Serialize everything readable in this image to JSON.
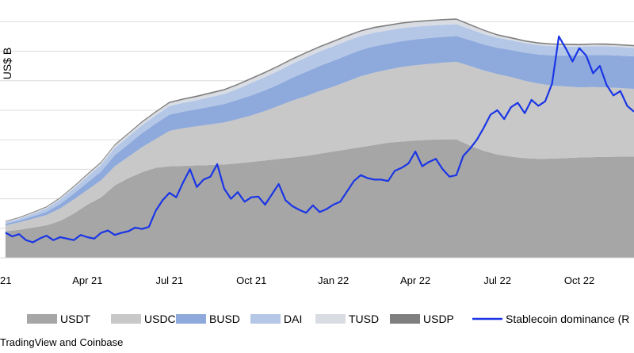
{
  "chart_data": {
    "type": "area",
    "ylabel": "US$ B",
    "x_tick_labels": [
      "21",
      "Apr 21",
      "Jul 21",
      "Oct 21",
      "Jan 22",
      "Apr 22",
      "Jul 22",
      "Oct 22"
    ],
    "x_tick_positions": [
      0,
      3,
      6,
      9,
      12,
      15,
      18,
      21
    ],
    "xlim": [
      -0.2,
      23
    ],
    "ylim": [
      0,
      165
    ],
    "grid": "horizontal",
    "legend_position": "bottom",
    "x": [
      0,
      0.5,
      1,
      1.5,
      2,
      2.5,
      3,
      3.5,
      4,
      4.5,
      5,
      5.5,
      6,
      6.5,
      7,
      7.5,
      8,
      8.5,
      9,
      9.5,
      10,
      10.5,
      11,
      11.5,
      12,
      12.5,
      13,
      13.5,
      14,
      14.5,
      15,
      15.5,
      16,
      16.5,
      17,
      17.5,
      18,
      18.5,
      19,
      19.5,
      20,
      20.5,
      21,
      21.5,
      22,
      22.5,
      23
    ],
    "series": [
      {
        "name": "USDT",
        "color": "#a6a6a6",
        "values": [
          18,
          19,
          20.5,
          22,
          25,
          30,
          36,
          41,
          49,
          54,
          58,
          61,
          62,
          62.3,
          62.6,
          62.9,
          63.2,
          64,
          65,
          66,
          67,
          68,
          69,
          70.5,
          72,
          73.5,
          75,
          76.5,
          78,
          78.8,
          79.5,
          79.9,
          80.2,
          80.3,
          76,
          72.5,
          70,
          68.5,
          67.5,
          67,
          67.2,
          67.6,
          68,
          68.2,
          68.4,
          68.5,
          68.5
        ]
      },
      {
        "name": "USDC",
        "color": "#c8c8c8",
        "values": [
          4,
          5,
          6,
          7,
          8.5,
          9.5,
          10,
          11.5,
          13,
          14.5,
          17,
          19.5,
          24,
          25.5,
          26.5,
          27.5,
          28.5,
          30,
          31.5,
          33.5,
          36,
          38.5,
          40.5,
          42.5,
          44,
          46,
          48,
          49,
          49.5,
          50.5,
          51,
          51.5,
          52,
          52.5,
          54,
          54.5,
          54.5,
          54,
          52.5,
          51,
          49.5,
          48.5,
          47.5,
          47.5,
          47,
          46.5,
          46
        ]
      },
      {
        "name": "BUSD",
        "color": "#8ea9db",
        "values": [
          1,
          1.2,
          1.5,
          2,
          3,
          4,
          5,
          6,
          7.5,
          8.5,
          9.5,
          10.5,
          11,
          11.2,
          11.5,
          12,
          12.5,
          13,
          13.5,
          14,
          14.5,
          15.5,
          16.5,
          17,
          17.5,
          17.7,
          17.8,
          17.8,
          17.6,
          17.5,
          17.5,
          17.5,
          17.5,
          17.5,
          17.5,
          17.6,
          17.8,
          18.3,
          19,
          19.8,
          20.5,
          21,
          21.5,
          21.7,
          22,
          22,
          22
        ]
      },
      {
        "name": "DAI",
        "color": "#b4c7e7",
        "values": [
          1,
          1.3,
          1.8,
          2.5,
          3,
          3.5,
          4,
          4.5,
          5,
          5.2,
          5.4,
          5.6,
          5.8,
          6,
          6.2,
          6.5,
          6.8,
          7.5,
          8.5,
          9,
          9.3,
          9.5,
          9.7,
          9.8,
          9.9,
          9.8,
          9.6,
          9.3,
          9,
          8.8,
          8.6,
          8.4,
          8.2,
          8,
          7.5,
          7,
          6.8,
          6.6,
          6.5,
          6.3,
          6.2,
          6.1,
          6,
          6,
          5.9,
          5.8,
          5.8
        ]
      },
      {
        "name": "TUSD",
        "color": "#d9dde3",
        "values": [
          0.5,
          0.5,
          0.6,
          0.7,
          0.8,
          1,
          1.2,
          1.4,
          1.6,
          1.7,
          1.8,
          1.9,
          2,
          2.1,
          2.2,
          2.3,
          2.4,
          2.5,
          2.6,
          2.7,
          2.8,
          2.8,
          2.8,
          2.8,
          2.8,
          2.9,
          2.9,
          3,
          3,
          3,
          3,
          3,
          3,
          3,
          2.5,
          2.2,
          1.5,
          1.2,
          1,
          1,
          1,
          1,
          1,
          1,
          1,
          1,
          1
        ]
      },
      {
        "name": "USDP",
        "color": "#7f7f7f",
        "values": [
          0.5,
          0.5,
          0.6,
          0.6,
          0.7,
          0.7,
          0.8,
          0.8,
          0.8,
          0.8,
          0.9,
          0.9,
          0.9,
          0.9,
          0.9,
          0.9,
          0.9,
          0.9,
          0.9,
          0.9,
          0.9,
          0.9,
          0.9,
          0.9,
          0.9,
          0.9,
          0.9,
          0.9,
          0.9,
          0.9,
          0.9,
          0.9,
          0.9,
          0.9,
          0.9,
          0.9,
          0.9,
          0.9,
          0.9,
          0.9,
          0.9,
          0.9,
          0.9,
          0.9,
          0.9,
          0.9,
          0.9
        ]
      }
    ],
    "line_series": {
      "name": "Stablecoin dominance (R",
      "color": "#1a35e6",
      "x": [
        0,
        0.25,
        0.5,
        0.75,
        1,
        1.25,
        1.5,
        1.75,
        2,
        2.25,
        2.5,
        2.75,
        3,
        3.25,
        3.5,
        3.75,
        4,
        4.25,
        4.5,
        4.75,
        5,
        5.25,
        5.5,
        5.75,
        6,
        6.25,
        6.5,
        6.75,
        7,
        7.25,
        7.5,
        7.75,
        8,
        8.25,
        8.5,
        8.75,
        9,
        9.25,
        9.5,
        9.75,
        10,
        10.25,
        10.5,
        10.75,
        11,
        11.25,
        11.5,
        11.75,
        12,
        12.25,
        12.5,
        12.75,
        13,
        13.25,
        13.5,
        13.75,
        14,
        14.25,
        14.5,
        14.75,
        15,
        15.25,
        15.5,
        15.75,
        16,
        16.25,
        16.5,
        16.75,
        17,
        17.25,
        17.5,
        17.75,
        18,
        18.25,
        18.5,
        18.75,
        19,
        19.25,
        19.5,
        19.75,
        20,
        20.25,
        20.5,
        20.75,
        21,
        21.25,
        21.5,
        21.75,
        22,
        22.25,
        22.5,
        22.75,
        23
      ],
      "values": [
        17,
        14.5,
        16,
        12,
        10.5,
        13,
        15,
        12,
        14,
        13,
        12,
        15.5,
        14,
        13,
        17,
        18.5,
        15.5,
        17,
        18,
        20.5,
        19.5,
        21,
        32,
        39,
        44,
        41,
        51,
        60,
        48,
        53,
        55,
        63.5,
        47,
        40,
        44.5,
        38,
        41,
        41.5,
        36,
        43,
        50,
        39,
        35,
        32.5,
        30.5,
        35.5,
        31,
        33,
        36,
        38,
        45,
        52,
        56,
        54,
        53,
        53,
        52,
        59,
        61,
        64,
        72,
        62,
        65,
        67,
        60,
        55,
        56,
        69,
        74,
        80,
        88,
        97,
        100,
        94,
        102,
        105,
        98,
        107,
        103,
        106,
        118,
        150,
        142,
        133,
        142,
        137,
        125,
        130,
        117,
        110,
        113,
        103,
        99
      ]
    }
  },
  "legend": {
    "items": [
      {
        "label": "USDT",
        "color": "#a6a6a6",
        "kind": "swatch"
      },
      {
        "label": "USDC",
        "color": "#c8c8c8",
        "kind": "swatch"
      },
      {
        "label": "BUSD",
        "color": "#8ea9db",
        "kind": "swatch"
      },
      {
        "label": "DAI",
        "color": "#b4c7e7",
        "kind": "swatch"
      },
      {
        "label": "TUSD",
        "color": "#d9dde3",
        "kind": "swatch"
      },
      {
        "label": "USDP",
        "color": "#7f7f7f",
        "kind": "swatch"
      },
      {
        "label": "Stablecoin dominance (R",
        "color": "#1a35e6",
        "kind": "line"
      }
    ]
  },
  "source_text": "TradingView and Coinbase"
}
